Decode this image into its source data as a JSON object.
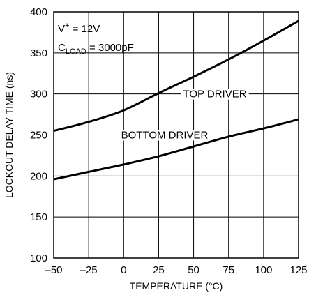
{
  "chart_data": {
    "type": "line",
    "title": "",
    "xlabel": "TEMPERATURE (°C)",
    "ylabel": "LOCKOUT DELAY TIME (ns)",
    "xlim": [
      -50,
      125
    ],
    "ylim": [
      100,
      400
    ],
    "x_ticks": [
      -50,
      -25,
      0,
      25,
      50,
      75,
      100,
      125
    ],
    "x_tick_labels": [
      "–50",
      "–25",
      "0",
      "25",
      "50",
      "75",
      "100",
      "125"
    ],
    "y_ticks": [
      100,
      150,
      200,
      250,
      300,
      350,
      400
    ],
    "y_tick_labels": [
      "100",
      "150",
      "200",
      "250",
      "300",
      "350",
      "400"
    ],
    "grid": true,
    "annotations": {
      "supply_prefix": "V",
      "supply_sup": "+",
      "supply_value": " = 12V",
      "load_prefix": "C",
      "load_sub": "LOAD",
      "load_value": " = 3000pF"
    },
    "series": [
      {
        "name": "TOP DRIVER",
        "x": [
          -50,
          -25,
          0,
          25,
          50,
          75,
          100,
          125
        ],
        "y": [
          255,
          266,
          280,
          301,
          321,
          342,
          365,
          389
        ]
      },
      {
        "name": "BOTTOM DRIVER",
        "x": [
          -50,
          -25,
          0,
          25,
          50,
          75,
          100,
          125
        ],
        "y": [
          196,
          205,
          214,
          224,
          236,
          248,
          258,
          269
        ]
      }
    ]
  }
}
